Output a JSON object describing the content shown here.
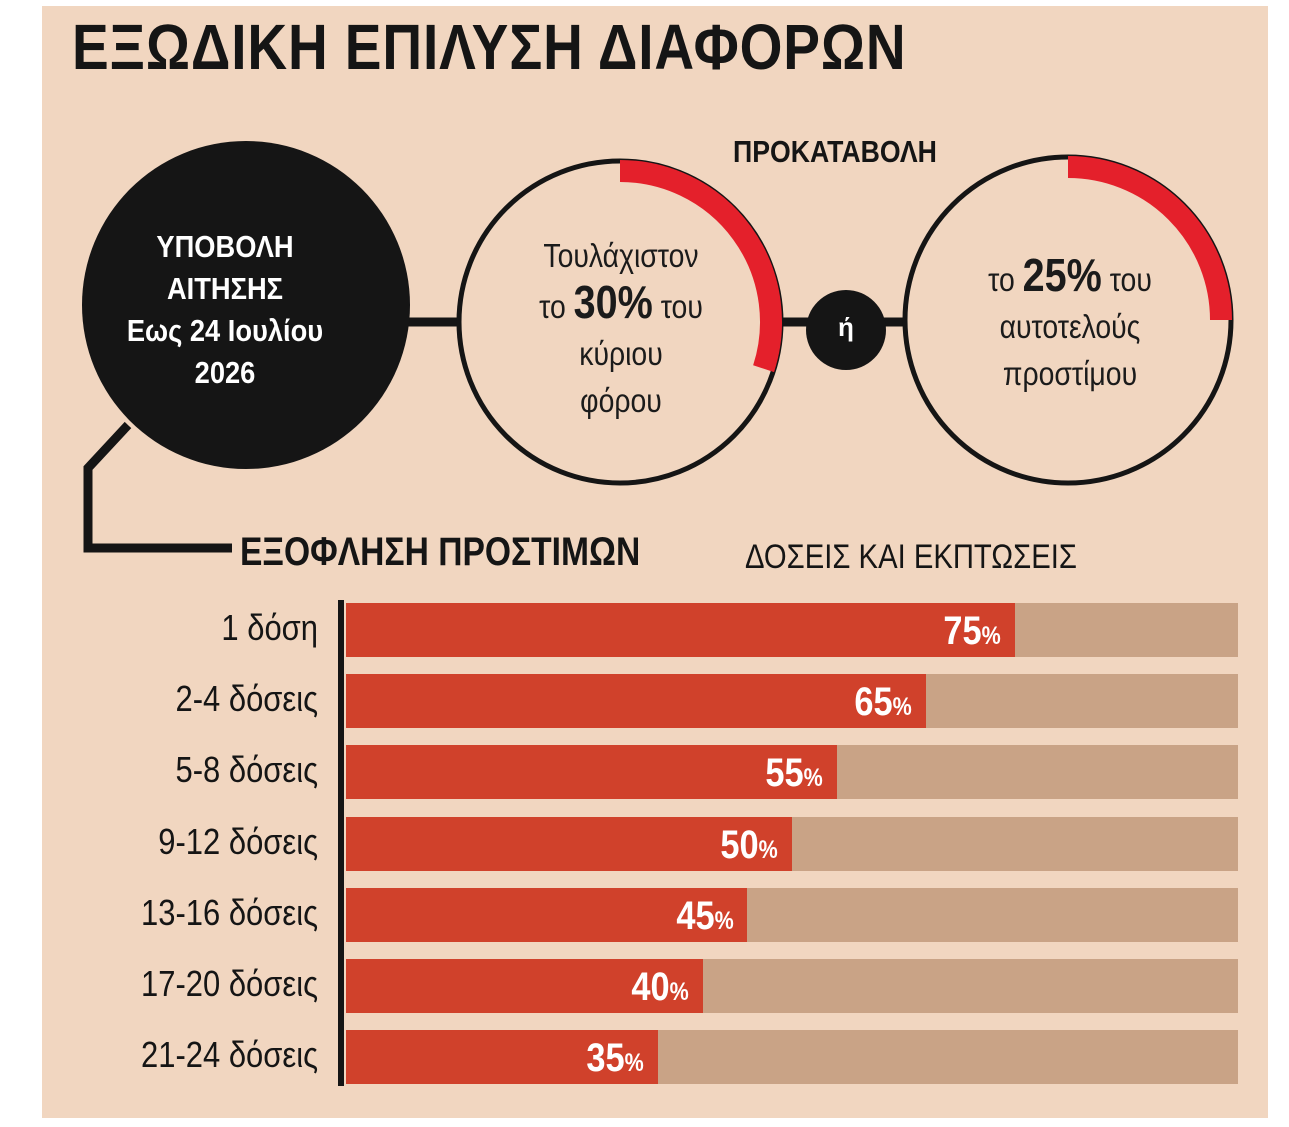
{
  "title": "ΕΞΩΔΙΚΗ ΕΠΙΛΥΣΗ ΔΙΑΦΟΡΩΝ",
  "submission": {
    "line1": "ΥΠΟΒΟΛΗ",
    "line2": "ΑΙΤΗΣΗΣ",
    "line3": "Εως 24 Ιουλίου",
    "line4": "2026"
  },
  "prepayment": {
    "label": "ΠΡΟΚΑΤΑΒΟΛΗ",
    "option1": {
      "line1": "Τουλάχιστον",
      "pre": "το",
      "value": "30%",
      "post": "του",
      "line3": "κύριου",
      "line4": "φόρου",
      "arc_fraction": 0.3
    },
    "or_label": "ή",
    "option2": {
      "pre": "το",
      "value": "25%",
      "post": "του",
      "line2": "αυτοτελούς",
      "line3": "προστίμου",
      "arc_fraction": 0.25
    }
  },
  "colors": {
    "background": "#f1d6c0",
    "accent_red": "#e4202b",
    "bar_red": "#d0412b",
    "bar_track": "#c9a386",
    "dark": "#151515"
  },
  "chart_data": {
    "type": "bar",
    "orientation": "horizontal",
    "title": "ΕΞΟΦΛΗΣΗ ΠΡΟΣΤΙΜΩΝ",
    "subtitle": "ΔΟΣΕΙΣ ΚΑΙ ΕΚΠΤΩΣΕΙΣ",
    "categories": [
      "1 δόση",
      "2-4 δόσεις",
      "5-8 δόσεις",
      "9-12 δόσεις",
      "13-16 δόσεις",
      "17-20 δόσεις",
      "21-24 δόσεις"
    ],
    "values": [
      75,
      65,
      55,
      50,
      45,
      40,
      35
    ],
    "value_labels": [
      "75",
      "65",
      "55",
      "50",
      "45",
      "40",
      "35"
    ],
    "unit": "%",
    "xlim": [
      0,
      100
    ]
  }
}
